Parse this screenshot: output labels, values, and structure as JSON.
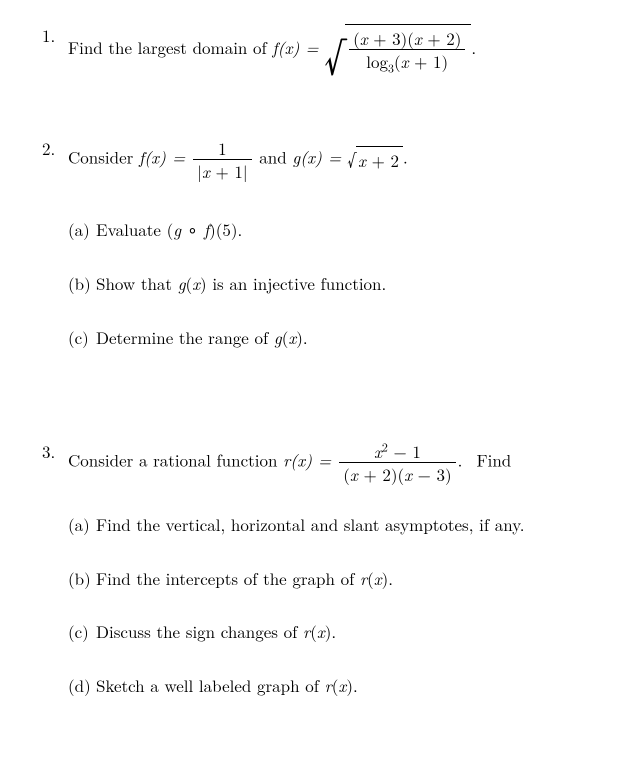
{
  "font": {
    "family": "Computer Modern / Latin Modern",
    "size_pt": 12,
    "color": "#000000"
  },
  "background_color": "#ffffff",
  "problems": [
    {
      "number": "1.",
      "text_before": "Find the largest domain of ",
      "func_lhs": "f(x) =",
      "sqrt_frac": {
        "numerator": "(x + 3)(x + 2)",
        "denominator_pre": "log",
        "denominator_sub": "3",
        "denominator_post": "(x + 1)"
      },
      "trailing": "."
    },
    {
      "number": "2.",
      "text_before": "Consider ",
      "f_lhs": "f(x) =",
      "f_frac": {
        "numerator": "1",
        "denominator": "|x + 1|"
      },
      "mid_text": " and ",
      "g_lhs": "g(x) =",
      "g_sqrt_inside": "x + 2",
      "trailing": ".",
      "subparts": [
        {
          "label": "(a)",
          "text_before": "Evaluate ",
          "expr": "(g ∘ f)(5)",
          "text_after": "."
        },
        {
          "label": "(b)",
          "text_before": "Show that ",
          "expr": "g(x)",
          "text_after": " is an injective function."
        },
        {
          "label": "(c)",
          "text_before": "Determine the range of ",
          "expr": "g(x)",
          "text_after": "."
        }
      ]
    },
    {
      "number": "3.",
      "text_before": "Consider a rational function ",
      "r_lhs": "r(x) =",
      "r_frac": {
        "numerator": "x² − 1",
        "denominator": "(x + 2)(x − 3)"
      },
      "trailing_before": ". ",
      "trailing": "Find",
      "subparts": [
        {
          "label": "(a)",
          "text": "Find the vertical, horizontal and slant asymptotes, if any."
        },
        {
          "label": "(b)",
          "text_before": "Find the intercepts of the graph of ",
          "expr": "r(x)",
          "text_after": "."
        },
        {
          "label": "(c)",
          "text_before": "Discuss the sign changes of ",
          "expr": "r(x)",
          "text_after": "."
        },
        {
          "label": "(d)",
          "text_before": "Sketch a well labeled graph of ",
          "expr": "r(x)",
          "text_after": "."
        }
      ]
    }
  ]
}
